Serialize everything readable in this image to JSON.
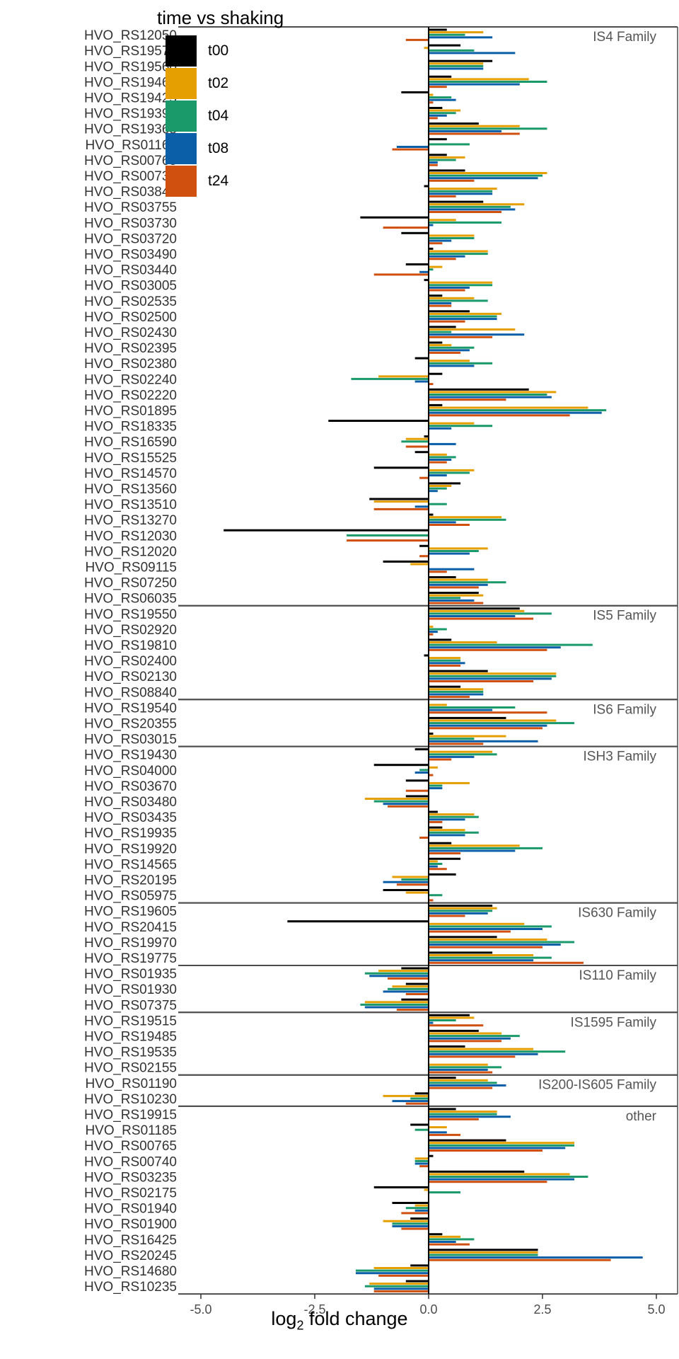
{
  "chart_data": {
    "type": "bar",
    "orientation": "horizontal",
    "xlabel_main": "log",
    "xlabel_sub": "2",
    "xlabel_rest": " fold change",
    "xlim": [
      -5.0,
      5.0
    ],
    "xticks": [
      "-5.0",
      "-2.5",
      "0.0",
      "2.5",
      "5.0"
    ],
    "xtick_values": [
      -5.0,
      -2.5,
      0.0,
      2.5,
      5.0
    ],
    "grid": false,
    "legend_title": "time vs shaking",
    "legend_position": "top-left",
    "series": [
      {
        "name": "t00",
        "color": "#000000"
      },
      {
        "name": "t02",
        "color": "#E69F00"
      },
      {
        "name": "t04",
        "color": "#1A9A6A"
      },
      {
        "name": "t08",
        "color": "#0B5FA8"
      },
      {
        "name": "t24",
        "color": "#D05010"
      }
    ],
    "panels": [
      {
        "label": "IS4 Family",
        "rows": [
          {
            "gene": "HVO_RS12050",
            "values": [
              0.4,
              1.2,
              0.8,
              1.4,
              -0.5
            ]
          },
          {
            "gene": "HVO_RS19570",
            "values": [
              0.7,
              -0.1,
              1.0,
              1.9,
              0.0
            ]
          },
          {
            "gene": "HVO_RS19560",
            "values": [
              1.4,
              1.2,
              1.2,
              1.2,
              0.0
            ]
          },
          {
            "gene": "HVO_RS19460",
            "values": [
              0.5,
              2.2,
              2.6,
              2.0,
              0.4
            ]
          },
          {
            "gene": "HVO_RS19425",
            "values": [
              -0.6,
              0.1,
              0.5,
              0.6,
              0.1
            ]
          },
          {
            "gene": "HVO_RS19390",
            "values": [
              0.3,
              0.7,
              0.6,
              0.4,
              0.2
            ]
          },
          {
            "gene": "HVO_RS19365",
            "values": [
              1.1,
              2.0,
              2.6,
              1.6,
              2.0
            ]
          },
          {
            "gene": "HVO_RS01160",
            "values": [
              0.4,
              0.0,
              0.9,
              -0.7,
              -0.8
            ]
          },
          {
            "gene": "HVO_RS00765",
            "values": [
              0.4,
              0.8,
              0.6,
              0.2,
              0.2
            ]
          },
          {
            "gene": "HVO_RS00735",
            "values": [
              0.8,
              2.6,
              2.5,
              2.4,
              1.0
            ]
          },
          {
            "gene": "HVO_RS03840",
            "values": [
              -0.1,
              1.5,
              1.4,
              1.4,
              0.6
            ]
          },
          {
            "gene": "HVO_RS03755",
            "values": [
              1.2,
              2.1,
              1.8,
              1.9,
              1.6
            ]
          },
          {
            "gene": "HVO_RS03730",
            "values": [
              -1.5,
              0.6,
              1.6,
              0.1,
              -1.0
            ]
          },
          {
            "gene": "HVO_RS03720",
            "values": [
              -0.6,
              1.0,
              1.0,
              0.5,
              0.3
            ]
          },
          {
            "gene": "HVO_RS03490",
            "values": [
              0.1,
              1.3,
              1.3,
              0.8,
              0.6
            ]
          },
          {
            "gene": "HVO_RS03440",
            "values": [
              -0.5,
              0.3,
              0.1,
              -0.2,
              -1.2
            ]
          },
          {
            "gene": "HVO_RS03005",
            "values": [
              -0.1,
              1.4,
              1.4,
              0.9,
              0.8
            ]
          },
          {
            "gene": "HVO_RS02535",
            "values": [
              0.3,
              1.0,
              1.3,
              0.5,
              0.5
            ]
          },
          {
            "gene": "HVO_RS02500",
            "values": [
              0.9,
              1.6,
              1.5,
              1.5,
              0.8
            ]
          },
          {
            "gene": "HVO_RS02430",
            "values": [
              0.6,
              1.9,
              0.5,
              2.1,
              1.4
            ]
          },
          {
            "gene": "HVO_RS02395",
            "values": [
              0.3,
              0.5,
              1.0,
              0.9,
              0.7
            ]
          },
          {
            "gene": "HVO_RS02380",
            "values": [
              -0.3,
              0.9,
              1.4,
              1.0,
              0.0
            ]
          },
          {
            "gene": "HVO_RS02240",
            "values": [
              0.3,
              -1.1,
              -1.7,
              -0.3,
              0.1
            ]
          },
          {
            "gene": "HVO_RS02220",
            "values": [
              2.2,
              2.8,
              2.6,
              2.7,
              1.7
            ]
          },
          {
            "gene": "HVO_RS01895",
            "values": [
              0.3,
              3.5,
              3.9,
              3.8,
              3.1
            ]
          },
          {
            "gene": "HVO_RS18335",
            "values": [
              -2.2,
              1.0,
              1.4,
              0.5,
              0.0
            ]
          },
          {
            "gene": "HVO_RS16590",
            "values": [
              -0.1,
              -0.5,
              -0.6,
              0.6,
              -0.5
            ]
          },
          {
            "gene": "HVO_RS15525",
            "values": [
              -0.3,
              0.4,
              0.6,
              0.5,
              0.4
            ]
          },
          {
            "gene": "HVO_RS14570",
            "values": [
              -1.2,
              1.0,
              0.9,
              0.4,
              -0.2
            ]
          },
          {
            "gene": "HVO_RS13560",
            "values": [
              0.7,
              0.5,
              0.4,
              0.2,
              0.0
            ]
          },
          {
            "gene": "HVO_RS13510",
            "values": [
              -1.3,
              -1.2,
              0.4,
              -0.3,
              -1.2
            ]
          },
          {
            "gene": "HVO_RS13270",
            "values": [
              0.1,
              1.6,
              1.7,
              0.6,
              0.9
            ]
          },
          {
            "gene": "HVO_RS12030",
            "values": [
              -4.5,
              0.0,
              -1.8,
              0.0,
              -1.8
            ]
          },
          {
            "gene": "HVO_RS12020",
            "values": [
              -0.2,
              1.3,
              1.1,
              0.9,
              -0.2
            ]
          },
          {
            "gene": "HVO_RS09115",
            "values": [
              -1.0,
              -0.4,
              0.0,
              1.0,
              0.4
            ]
          },
          {
            "gene": "HVO_RS07250",
            "values": [
              0.6,
              1.3,
              1.7,
              1.3,
              1.1
            ]
          },
          {
            "gene": "HVO_RS06035",
            "values": [
              1.1,
              1.2,
              0.7,
              1.0,
              1.2
            ]
          }
        ]
      },
      {
        "label": "IS5 Family",
        "rows": [
          {
            "gene": "HVO_RS19550",
            "values": [
              2.0,
              2.1,
              2.7,
              1.9,
              2.3
            ]
          },
          {
            "gene": "HVO_RS02920",
            "values": [
              0.0,
              0.1,
              0.4,
              0.2,
              0.1
            ]
          },
          {
            "gene": "HVO_RS19810",
            "values": [
              0.5,
              1.5,
              3.6,
              2.9,
              2.6
            ]
          },
          {
            "gene": "HVO_RS02400",
            "values": [
              -0.1,
              0.7,
              0.7,
              0.8,
              0.7
            ]
          },
          {
            "gene": "HVO_RS02130",
            "values": [
              1.3,
              2.8,
              2.8,
              2.7,
              2.3
            ]
          },
          {
            "gene": "HVO_RS08840",
            "values": [
              0.7,
              1.2,
              1.2,
              1.2,
              0.9
            ]
          }
        ]
      },
      {
        "label": "IS6 Family",
        "rows": [
          {
            "gene": "HVO_RS19540",
            "values": [
              0.0,
              0.4,
              1.9,
              1.4,
              2.6
            ]
          },
          {
            "gene": "HVO_RS20355",
            "values": [
              1.7,
              2.8,
              3.2,
              2.6,
              2.5
            ]
          },
          {
            "gene": "HVO_RS03015",
            "values": [
              0.1,
              1.7,
              1.0,
              2.4,
              1.2
            ]
          }
        ]
      },
      {
        "label": "ISH3 Family",
        "rows": [
          {
            "gene": "HVO_RS19430",
            "values": [
              -0.3,
              1.4,
              1.5,
              1.0,
              0.5
            ]
          },
          {
            "gene": "HVO_RS04000",
            "values": [
              -1.2,
              0.2,
              -0.2,
              -0.3,
              0.1
            ]
          },
          {
            "gene": "HVO_RS03670",
            "values": [
              -0.5,
              0.9,
              0.3,
              0.3,
              -0.5
            ]
          },
          {
            "gene": "HVO_RS03480",
            "values": [
              -0.5,
              -1.4,
              -1.2,
              -1.0,
              -0.9
            ]
          },
          {
            "gene": "HVO_RS03435",
            "values": [
              0.2,
              1.0,
              1.1,
              0.8,
              0.3
            ]
          },
          {
            "gene": "HVO_RS19935",
            "values": [
              0.3,
              0.8,
              1.1,
              0.8,
              -0.2
            ]
          },
          {
            "gene": "HVO_RS19920",
            "values": [
              0.5,
              2.0,
              2.5,
              1.9,
              0.7
            ]
          },
          {
            "gene": "HVO_RS14565",
            "values": [
              0.7,
              0.2,
              0.3,
              0.2,
              0.4
            ]
          },
          {
            "gene": "HVO_RS20195",
            "values": [
              0.6,
              -0.8,
              -0.6,
              -1.0,
              -0.7
            ]
          },
          {
            "gene": "HVO_RS05975",
            "values": [
              -1.0,
              -0.5,
              0.3,
              0.0,
              0.1
            ]
          }
        ]
      },
      {
        "label": "IS630 Family",
        "rows": [
          {
            "gene": "HVO_RS19605",
            "values": [
              1.4,
              1.5,
              1.4,
              1.3,
              0.8
            ]
          },
          {
            "gene": "HVO_RS20415",
            "values": [
              -3.1,
              2.1,
              2.7,
              2.5,
              1.8
            ]
          },
          {
            "gene": "HVO_RS19970",
            "values": [
              1.5,
              2.6,
              3.2,
              2.9,
              2.5
            ]
          },
          {
            "gene": "HVO_RS19775",
            "values": [
              1.4,
              2.3,
              2.7,
              2.3,
              3.4
            ]
          }
        ]
      },
      {
        "label": "IS110 Family",
        "rows": [
          {
            "gene": "HVO_RS01935",
            "values": [
              -0.6,
              -1.1,
              -1.4,
              -1.3,
              -0.9
            ]
          },
          {
            "gene": "HVO_RS01930",
            "values": [
              -0.5,
              -0.8,
              -0.9,
              -1.0,
              -0.5
            ]
          },
          {
            "gene": "HVO_RS07375",
            "values": [
              -0.6,
              -1.4,
              -1.5,
              -1.4,
              -0.7
            ]
          }
        ]
      },
      {
        "label": "IS1595 Family",
        "rows": [
          {
            "gene": "HVO_RS19515",
            "values": [
              0.9,
              1.0,
              0.6,
              0.1,
              1.2
            ]
          },
          {
            "gene": "HVO_RS19485",
            "values": [
              1.1,
              1.6,
              2.0,
              1.8,
              1.6
            ]
          },
          {
            "gene": "HVO_RS19535",
            "values": [
              0.8,
              2.3,
              3.0,
              2.4,
              1.9
            ]
          },
          {
            "gene": "HVO_RS02155",
            "values": [
              0.0,
              1.3,
              1.6,
              1.3,
              1.4
            ]
          }
        ]
      },
      {
        "label": "IS200-IS605 Family",
        "rows": [
          {
            "gene": "HVO_RS01190",
            "values": [
              0.6,
              1.3,
              1.5,
              1.7,
              1.4
            ]
          },
          {
            "gene": "HVO_RS10230",
            "values": [
              -0.3,
              -1.0,
              -0.4,
              -0.8,
              -0.5
            ]
          }
        ]
      },
      {
        "label": "other",
        "rows": [
          {
            "gene": "HVO_RS19915",
            "values": [
              0.6,
              1.5,
              1.5,
              1.8,
              1.1
            ]
          },
          {
            "gene": "HVO_RS01185",
            "values": [
              -0.4,
              0.4,
              -0.3,
              0.4,
              0.7
            ]
          },
          {
            "gene": "HVO_RS00765",
            "values": [
              1.7,
              3.2,
              3.2,
              3.0,
              2.5
            ]
          },
          {
            "gene": "HVO_RS00740",
            "values": [
              0.1,
              -0.3,
              -0.3,
              -0.3,
              -0.2
            ]
          },
          {
            "gene": "HVO_RS03235",
            "values": [
              2.1,
              3.1,
              3.5,
              3.2,
              2.6
            ]
          },
          {
            "gene": "HVO_RS02175",
            "values": [
              -1.2,
              -0.1,
              0.7,
              0.0,
              0.0
            ]
          },
          {
            "gene": "HVO_RS01940",
            "values": [
              -0.8,
              -0.3,
              -0.5,
              -0.3,
              -0.6
            ]
          },
          {
            "gene": "HVO_RS01900",
            "values": [
              -0.4,
              -1.0,
              -0.8,
              -0.8,
              -0.6
            ]
          },
          {
            "gene": "HVO_RS16425",
            "values": [
              0.3,
              0.7,
              1.0,
              0.6,
              0.9
            ]
          },
          {
            "gene": "HVO_RS20245",
            "values": [
              2.4,
              2.4,
              2.4,
              4.7,
              4.0
            ]
          },
          {
            "gene": "HVO_RS14680",
            "values": [
              -0.4,
              -1.2,
              -1.6,
              -1.6,
              -1.1
            ]
          },
          {
            "gene": "HVO_RS10235",
            "values": [
              -0.5,
              -1.3,
              -1.4,
              -1.2,
              -1.2
            ]
          }
        ]
      }
    ]
  }
}
